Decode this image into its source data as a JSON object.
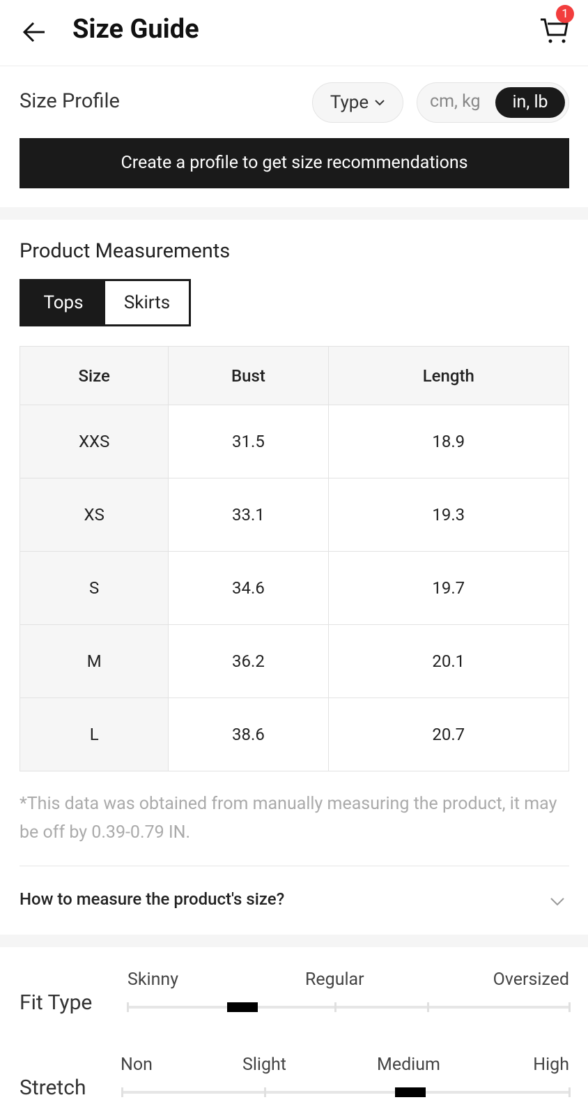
{
  "header": {
    "title": "Size Guide",
    "cart_count": "1"
  },
  "size_profile": {
    "title": "Size Profile",
    "type_label": "Type",
    "units": [
      "cm, kg",
      "in, lb"
    ],
    "selected_unit": "in, lb",
    "cta": "Create a profile to get size recommendations"
  },
  "measurements": {
    "title": "Product Measurements",
    "tabs": [
      {
        "label": "Tops",
        "active": true
      },
      {
        "label": "Skirts",
        "active": false
      }
    ],
    "columns": [
      "Size",
      "Bust",
      "Length"
    ],
    "rows": [
      [
        "XXS",
        "31.5",
        "18.9"
      ],
      [
        "XS",
        "33.1",
        "19.3"
      ],
      [
        "S",
        "34.6",
        "19.7"
      ],
      [
        "M",
        "36.2",
        "20.1"
      ],
      [
        "L",
        "38.6",
        "20.7"
      ]
    ],
    "note": "*This data was obtained from manually measuring the product, it may be off by 0.39-0.79 IN.",
    "how_to": "How to measure the product's size?"
  },
  "fit_type": {
    "label": "Fit Type",
    "scale": [
      "Skinny",
      "Regular",
      "Oversized"
    ],
    "level": 0.26
  },
  "stretch": {
    "label": "Stretch",
    "scale": [
      "Non",
      "Slight",
      "Medium",
      "High"
    ],
    "level": 0.645
  }
}
